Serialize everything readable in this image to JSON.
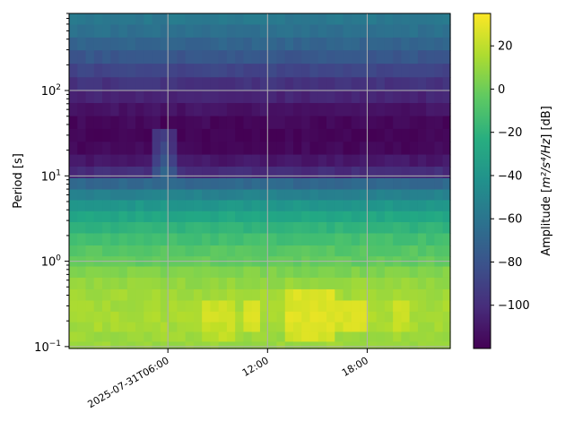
{
  "chart_data": {
    "type": "heatmap",
    "title": "",
    "ylabel": "Period [s]",
    "y_scale": "log",
    "ylim": [
      0.095,
      800
    ],
    "y_ticks": [
      {
        "value": 0.1,
        "label": "10",
        "exp": "−1"
      },
      {
        "value": 1,
        "label": "10",
        "exp": "0"
      },
      {
        "value": 10,
        "label": "10",
        "exp": "1"
      },
      {
        "value": 100,
        "label": "10",
        "exp": "2"
      }
    ],
    "x_ticks": [
      "2025-07-31T06:00",
      "12:00",
      "18:00"
    ],
    "x_tick_hours": [
      6,
      12,
      18
    ],
    "x_range_hours": [
      0.05,
      23.0
    ],
    "grid": true,
    "colormap": "viridis",
    "colorbar": {
      "label_prefix": "Amplitude [",
      "label_unit": "m²/s⁴/Hz",
      "label_suffix": "] [dB]",
      "vmin": -120,
      "vmax": 35,
      "ticks": [
        "20",
        "0",
        "−20",
        "−40",
        "−60",
        "−80",
        "−100"
      ],
      "tick_values": [
        20,
        0,
        -20,
        -40,
        -60,
        -80,
        -100
      ]
    },
    "time_hours": [
      0.05,
      0.55,
      1.05,
      1.55,
      2.05,
      2.55,
      3.05,
      3.55,
      4.05,
      4.55,
      5.05,
      5.55,
      6.05,
      6.55,
      7.05,
      7.55,
      8.05,
      8.55,
      9.05,
      9.55,
      10.05,
      10.55,
      11.05,
      11.55,
      12.05,
      12.55,
      13.05,
      13.55,
      14.05,
      14.55,
      15.05,
      15.55,
      16.05,
      16.55,
      17.05,
      17.55,
      18.05,
      18.55,
      19.05,
      19.55,
      20.05,
      20.55,
      21.05,
      21.55,
      22.05,
      22.55,
      23.0
    ],
    "periods_s": [
      700,
      500,
      350,
      250,
      170,
      120,
      85,
      60,
      42,
      30,
      21,
      15,
      11,
      8,
      6,
      4.5,
      3.3,
      2.5,
      1.8,
      1.3,
      1.0,
      0.75,
      0.55,
      0.4,
      0.3,
      0.22,
      0.17,
      0.13,
      0.1
    ],
    "base_profile_db": [
      -58,
      -63,
      -70,
      -78,
      -88,
      -97,
      -104,
      -112,
      -117,
      -119,
      -117,
      -110,
      -100,
      -68,
      -52,
      -38,
      -28,
      -20,
      -12,
      -6,
      -2,
      5,
      10,
      13,
      14,
      15,
      14,
      12,
      11
    ],
    "hot_zones": [
      {
        "t_start": 10.5,
        "t_end": 11.5,
        "period_max": 0.35,
        "period_min": 0.14,
        "boost_db": 12
      },
      {
        "t_start": 13.0,
        "t_end": 15.8,
        "period_max": 0.4,
        "period_min": 0.13,
        "boost_db": 13
      },
      {
        "t_start": 16.0,
        "t_end": 17.8,
        "period_max": 0.35,
        "period_min": 0.15,
        "boost_db": 11
      },
      {
        "t_start": 8.0,
        "t_end": 10.0,
        "period_max": 0.3,
        "period_min": 0.12,
        "boost_db": 8
      },
      {
        "t_start": 19.5,
        "t_end": 20.5,
        "period_max": 0.35,
        "period_min": 0.15,
        "boost_db": 8
      }
    ],
    "disturbance": {
      "t_start": 5.0,
      "t_end": 6.5,
      "period_min": 9,
      "period_max": 40,
      "boost_db": 30
    }
  }
}
